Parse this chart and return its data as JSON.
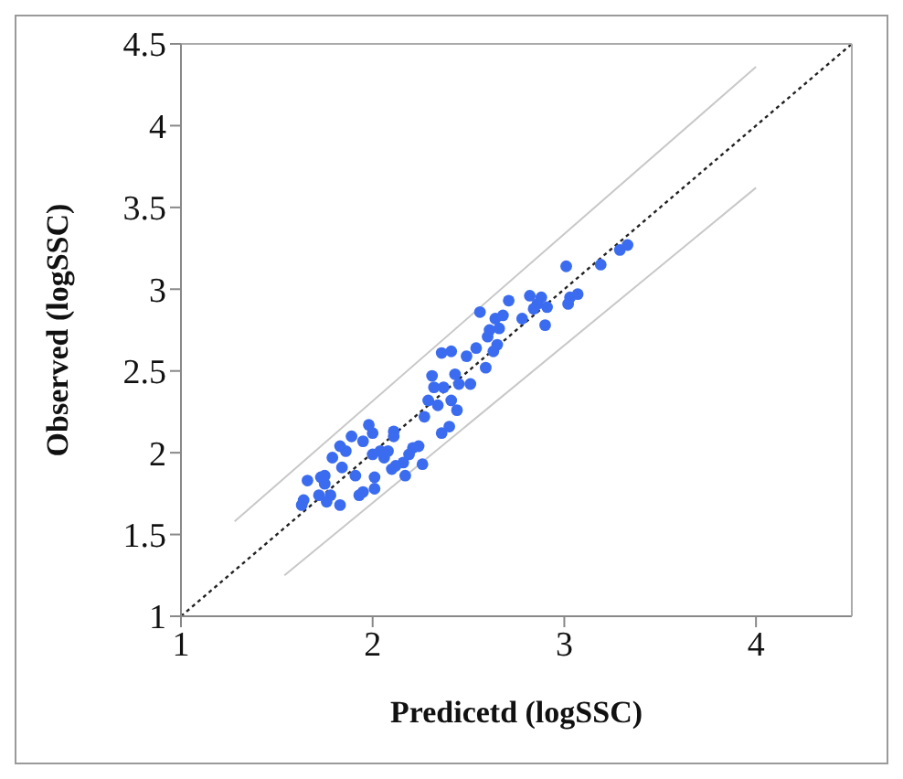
{
  "chart_data": {
    "type": "scatter",
    "xlabel": "Predicetd (logSSC)",
    "ylabel": "Observed (logSSC)",
    "xlim": [
      1,
      4.5
    ],
    "ylim": [
      1,
      4.5
    ],
    "xticks": [
      1,
      2,
      3,
      4
    ],
    "yticks": [
      1,
      1.5,
      2,
      2.5,
      3,
      3.5,
      4,
      4.5
    ],
    "grid": false,
    "marker": "circle",
    "series": [
      {
        "type": "line",
        "color": "#c8c8c8",
        "line_style": "solid",
        "marker": "none",
        "x": [
          1.28,
          4.0
        ],
        "values": [
          1.58,
          4.36
        ]
      },
      {
        "type": "line",
        "color": "#c8c8c8",
        "line_style": "solid",
        "marker": "none",
        "x": [
          1.54,
          4.0
        ],
        "values": [
          1.25,
          3.62
        ]
      },
      {
        "type": "line",
        "color": "#222222",
        "line_style": "dotted",
        "marker": "none",
        "x": [
          1,
          4.5
        ],
        "values": [
          1,
          4.5
        ]
      },
      {
        "color": "#3b6cf0",
        "x": [
          1.63,
          1.64,
          1.66,
          1.73,
          1.75,
          1.75,
          1.72,
          1.76,
          1.78,
          1.83,
          1.79,
          1.83,
          1.84,
          1.86,
          1.89,
          1.91,
          1.93,
          1.95,
          1.95,
          1.98,
          2.0,
          2.0,
          2.01,
          2.01,
          2.04,
          2.06,
          2.08,
          2.11,
          2.11,
          2.1,
          2.12,
          2.16,
          2.17,
          2.19,
          2.21,
          2.24,
          2.26,
          2.27,
          2.29,
          2.31,
          2.32,
          2.34,
          2.36,
          2.36,
          2.37,
          2.4,
          2.41,
          2.41,
          2.43,
          2.44,
          2.45,
          2.49,
          2.51,
          2.56,
          2.54,
          2.59,
          2.6,
          2.61,
          2.63,
          2.64,
          2.65,
          2.66,
          2.68,
          2.71,
          2.78,
          2.82,
          2.84,
          2.86,
          2.88,
          2.9,
          2.91,
          3.01,
          3.02,
          3.03,
          3.07,
          3.19,
          3.29,
          3.33
        ],
        "values": [
          1.68,
          1.71,
          1.83,
          1.85,
          1.86,
          1.81,
          1.74,
          1.7,
          1.74,
          1.68,
          1.97,
          2.04,
          1.91,
          2.01,
          2.1,
          1.86,
          1.74,
          1.76,
          2.07,
          2.17,
          2.12,
          1.99,
          1.85,
          1.78,
          2.01,
          1.97,
          2.01,
          2.13,
          2.1,
          1.9,
          1.92,
          1.94,
          1.86,
          1.99,
          2.03,
          2.04,
          1.93,
          2.22,
          2.32,
          2.47,
          2.4,
          2.29,
          2.61,
          2.12,
          2.4,
          2.16,
          2.62,
          2.32,
          2.48,
          2.26,
          2.42,
          2.59,
          2.42,
          2.86,
          2.64,
          2.52,
          2.71,
          2.75,
          2.62,
          2.82,
          2.66,
          2.76,
          2.84,
          2.93,
          2.82,
          2.96,
          2.88,
          2.91,
          2.95,
          2.78,
          2.89,
          3.14,
          2.91,
          2.95,
          2.97,
          3.15,
          3.24,
          3.27
        ]
      }
    ]
  }
}
